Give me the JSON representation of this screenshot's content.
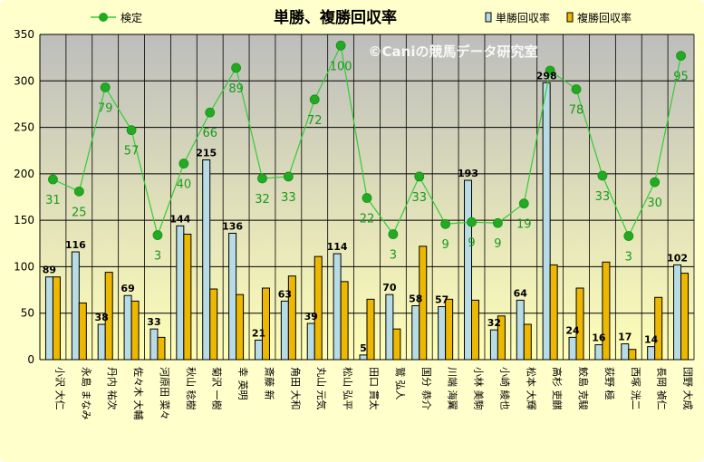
{
  "chart_data": {
    "type": "bar",
    "title": "単勝、複勝回収率",
    "watermark": "©Caniの競馬データ研究室",
    "legend": {
      "placement": "top",
      "entries": [
        "検定",
        "単勝回収率",
        "複勝回収率"
      ]
    },
    "ylim": [
      0,
      350
    ],
    "yticks": [
      0,
      50,
      100,
      150,
      200,
      250,
      300,
      350
    ],
    "grid": true,
    "colors": {
      "line": "#33cc33",
      "marker": "#22aa22",
      "label": "#1a9a1a",
      "tansho_bar": "#b8dce6",
      "fukusho_bar": "#eeb800",
      "bg_top": "#bdbdbd",
      "bg_bottom": "#ffffb8",
      "frame": "#ffffcc"
    },
    "categories": [
      "小沢 大仁",
      "永島 まなみ",
      "丹内 祐次",
      "佐々木 大輔",
      "河原田 菜々",
      "秋山 稔樹",
      "菊沢 一樹",
      "幸 英明",
      "斎藤 新",
      "角田 大和",
      "丸山 元気",
      "松山 弘平",
      "田口 貫太",
      "鷲 弘人",
      "国分 恭介",
      "川端 海翼",
      "小林 美駒",
      "小崎 綾也",
      "松本 大輝",
      "高杉 吏麒",
      "鮫島 克駿",
      "荻野 極",
      "西塚 洸二",
      "長岡 禎仁",
      "団野 大成"
    ],
    "series": [
      {
        "name": "単勝回収率",
        "kind": "bar",
        "values": [
          89,
          116,
          38,
          69,
          33,
          144,
          215,
          136,
          21,
          63,
          39,
          114,
          5,
          70,
          58,
          57,
          193,
          32,
          64,
          298,
          24,
          16,
          17,
          14,
          102
        ],
        "labels": [
          "89",
          "116",
          "38",
          "69",
          "33",
          "144",
          "215",
          "136",
          "21",
          "63",
          "39",
          "114",
          "5",
          "70",
          "58",
          "57",
          "193",
          "32",
          "64",
          "298",
          "24",
          "16",
          "17",
          "14",
          "102"
        ]
      },
      {
        "name": "複勝回収率",
        "kind": "bar",
        "values": [
          89,
          61,
          94,
          63,
          24,
          135,
          76,
          70,
          77,
          90,
          111,
          84,
          65,
          33,
          122,
          65,
          64,
          47,
          38,
          102,
          77,
          105,
          11,
          67,
          93
        ]
      },
      {
        "name": "検定",
        "kind": "line",
        "values": [
          194,
          181,
          293,
          247,
          134,
          211,
          266,
          314,
          195,
          197,
          280,
          338,
          174,
          135,
          197,
          146,
          148,
          147,
          168,
          311,
          291,
          198,
          133,
          191,
          327
        ],
        "labels": [
          "31",
          "25",
          "79",
          "57",
          "3",
          "40",
          "66",
          "89",
          "32",
          "33",
          "72",
          "100",
          "22",
          "3",
          "33",
          "9",
          "9",
          "9",
          "19",
          "",
          "78",
          "33",
          "3",
          "30",
          "95"
        ]
      }
    ]
  }
}
